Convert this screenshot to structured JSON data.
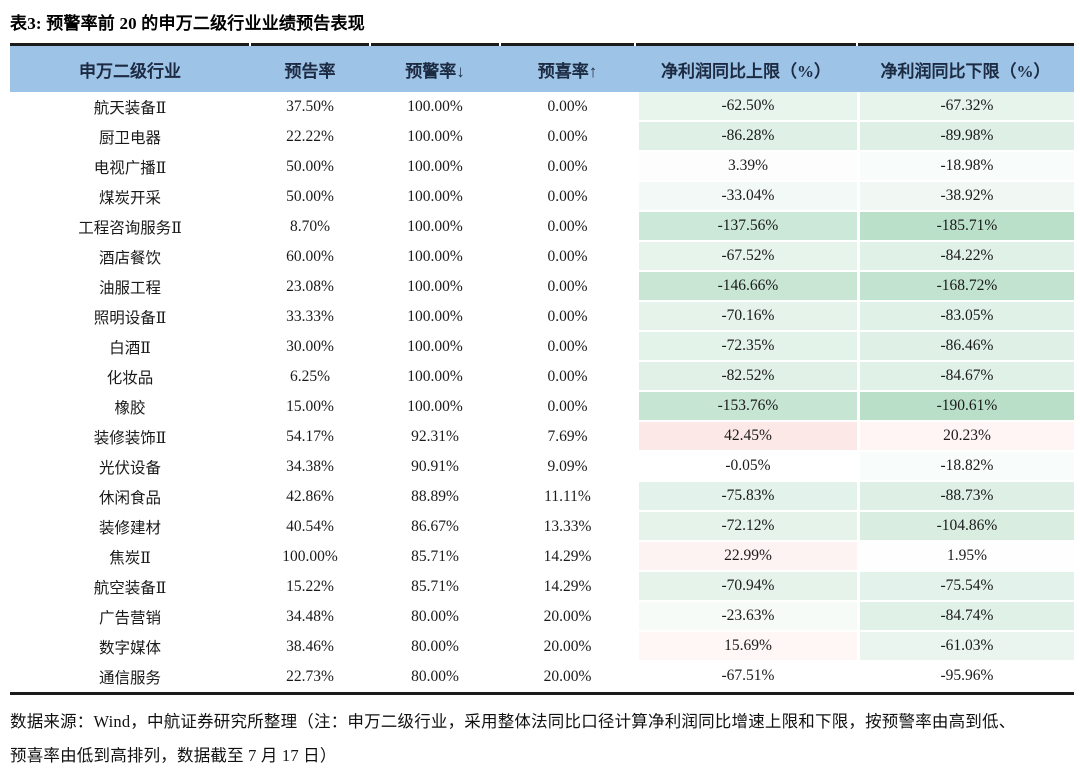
{
  "page": {
    "title": "表3: 预警率前 20 的申万二级行业业绩预告表现"
  },
  "colors": {
    "header_bg": "#9dc3e6",
    "border": "#1b1b1b",
    "header_text": "#1c2a42",
    "body_text": "#1a1a1a",
    "scale_green_max": "#b9dfc9",
    "scale_pink_max": "#fce9e7"
  },
  "table": {
    "columns": [
      {
        "key": "industry",
        "label": "申万二级行业"
      },
      {
        "key": "forecast_rate",
        "label": "预告率"
      },
      {
        "key": "warning_rate",
        "label": "预警率↓"
      },
      {
        "key": "positive_rate",
        "label": "预喜率↑"
      },
      {
        "key": "upper_limit",
        "label": "净利润同比上限（%）"
      },
      {
        "key": "lower_limit",
        "label": "净利润同比下限（%）"
      }
    ],
    "rows": [
      {
        "industry": "航天装备Ⅱ",
        "forecast_rate": "37.50%",
        "warning_rate": "100.00%",
        "positive_rate": "0.00%",
        "upper_limit": "-62.50%",
        "lower_limit": "-67.32%",
        "upper_bg": "#e8f5ed",
        "lower_bg": "#e6f4ec"
      },
      {
        "industry": "厨卫电器",
        "forecast_rate": "22.22%",
        "warning_rate": "100.00%",
        "positive_rate": "0.00%",
        "upper_limit": "-86.28%",
        "lower_limit": "-89.98%",
        "upper_bg": "#dff1e7",
        "lower_bg": "#def0e6"
      },
      {
        "industry": "电视广播Ⅱ",
        "forecast_rate": "50.00%",
        "warning_rate": "100.00%",
        "positive_rate": "0.00%",
        "upper_limit": "3.39%",
        "lower_limit": "-18.98%",
        "upper_bg": "#fefdfd",
        "lower_bg": "#f8fcfa"
      },
      {
        "industry": "煤炭开采",
        "forecast_rate": "50.00%",
        "warning_rate": "100.00%",
        "positive_rate": "0.00%",
        "upper_limit": "-33.04%",
        "lower_limit": "-38.92%",
        "upper_bg": "#f3f9f6",
        "lower_bg": "#f1f8f4"
      },
      {
        "industry": "工程咨询服务Ⅱ",
        "forecast_rate": "8.70%",
        "warning_rate": "100.00%",
        "positive_rate": "0.00%",
        "upper_limit": "-137.56%",
        "lower_limit": "-185.71%",
        "upper_bg": "#cce8d8",
        "lower_bg": "#bbe0ca"
      },
      {
        "industry": "酒店餐饮",
        "forecast_rate": "60.00%",
        "warning_rate": "100.00%",
        "positive_rate": "0.00%",
        "upper_limit": "-67.52%",
        "lower_limit": "-84.22%",
        "upper_bg": "#e6f4ec",
        "lower_bg": "#e0f1e7"
      },
      {
        "industry": "油服工程",
        "forecast_rate": "23.08%",
        "warning_rate": "100.00%",
        "positive_rate": "0.00%",
        "upper_limit": "-146.66%",
        "lower_limit": "-168.72%",
        "upper_bg": "#c9e6d5",
        "lower_bg": "#c1e3cf"
      },
      {
        "industry": "照明设备Ⅱ",
        "forecast_rate": "33.33%",
        "warning_rate": "100.00%",
        "positive_rate": "0.00%",
        "upper_limit": "-70.16%",
        "lower_limit": "-83.05%",
        "upper_bg": "#e5f3eb",
        "lower_bg": "#e0f1e8"
      },
      {
        "industry": "白酒Ⅱ",
        "forecast_rate": "30.00%",
        "warning_rate": "100.00%",
        "positive_rate": "0.00%",
        "upper_limit": "-72.35%",
        "lower_limit": "-86.46%",
        "upper_bg": "#e4f3ea",
        "lower_bg": "#dff1e7"
      },
      {
        "industry": "化妆品",
        "forecast_rate": "6.25%",
        "warning_rate": "100.00%",
        "positive_rate": "0.00%",
        "upper_limit": "-82.52%",
        "lower_limit": "-84.67%",
        "upper_bg": "#e1f1e8",
        "lower_bg": "#e0f1e7"
      },
      {
        "industry": "橡胶",
        "forecast_rate": "15.00%",
        "warning_rate": "100.00%",
        "positive_rate": "0.00%",
        "upper_limit": "-153.76%",
        "lower_limit": "-190.61%",
        "upper_bg": "#c7e5d3",
        "lower_bg": "#b9dfc9"
      },
      {
        "industry": "装修装饰Ⅱ",
        "forecast_rate": "54.17%",
        "warning_rate": "92.31%",
        "positive_rate": "7.69%",
        "upper_limit": "42.45%",
        "lower_limit": "20.23%",
        "upper_bg": "#fce9e7",
        "lower_bg": "#fef5f4"
      },
      {
        "industry": "光伏设备",
        "forecast_rate": "34.38%",
        "warning_rate": "90.91%",
        "positive_rate": "9.09%",
        "upper_limit": "-0.05%",
        "lower_limit": "-18.82%",
        "upper_bg": "#ffffff",
        "lower_bg": "#f8fcfa"
      },
      {
        "industry": "休闲食品",
        "forecast_rate": "42.86%",
        "warning_rate": "88.89%",
        "positive_rate": "11.11%",
        "upper_limit": "-75.83%",
        "lower_limit": "-88.73%",
        "upper_bg": "#e3f2ea",
        "lower_bg": "#def0e6"
      },
      {
        "industry": "装修建材",
        "forecast_rate": "40.54%",
        "warning_rate": "86.67%",
        "positive_rate": "13.33%",
        "upper_limit": "-72.12%",
        "lower_limit": "-104.86%",
        "upper_bg": "#e5f3ea",
        "lower_bg": "#d9ede1"
      },
      {
        "industry": "焦炭Ⅱ",
        "forecast_rate": "100.00%",
        "warning_rate": "85.71%",
        "positive_rate": "14.29%",
        "upper_limit": "22.99%",
        "lower_limit": "1.95%",
        "upper_bg": "#fdf3f2",
        "lower_bg": "#fffefe"
      },
      {
        "industry": "航空装备Ⅱ",
        "forecast_rate": "15.22%",
        "warning_rate": "85.71%",
        "positive_rate": "14.29%",
        "upper_limit": "-70.94%",
        "lower_limit": "-75.54%",
        "upper_bg": "#e5f3eb",
        "lower_bg": "#e3f2ea"
      },
      {
        "industry": "广告营销",
        "forecast_rate": "34.48%",
        "warning_rate": "80.00%",
        "positive_rate": "20.00%",
        "upper_limit": "-23.63%",
        "lower_limit": "-84.74%",
        "upper_bg": "#f6fbf8",
        "lower_bg": "#e0f1e7"
      },
      {
        "industry": "数字媒体",
        "forecast_rate": "38.46%",
        "warning_rate": "80.00%",
        "positive_rate": "20.00%",
        "upper_limit": "15.69%",
        "lower_limit": "-61.03%",
        "upper_bg": "#fef7f6",
        "lower_bg": "#e9f5ee"
      },
      {
        "industry": "通信服务",
        "forecast_rate": "22.73%",
        "warning_rate": "80.00%",
        "positive_rate": "20.00%",
        "upper_limit": "-67.51%",
        "lower_limit": "-95.96%",
        "upper_bg": "#ffffff",
        "lower_bg": "#ffffff"
      }
    ]
  },
  "footnote": "数据来源：Wind，中航证券研究所整理（注：申万二级行业，采用整体法同比口径计算净利润同比增速上限和下限，按预警率由高到低、预喜率由低到高排列，数据截至 7 月 17 日）"
}
